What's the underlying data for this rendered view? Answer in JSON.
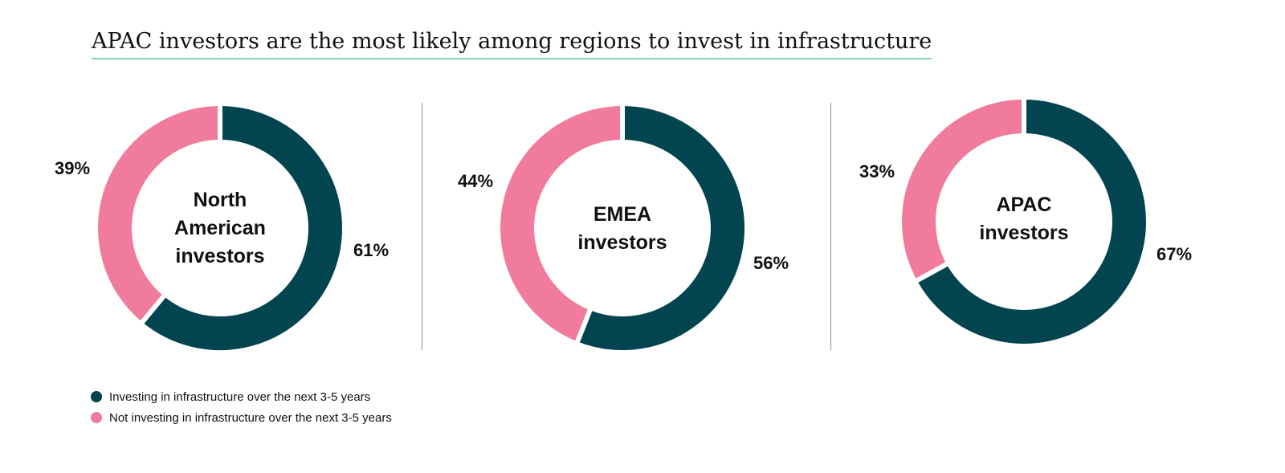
{
  "title": "APAC investors are the most likely among regions to invest in infrastructure",
  "colors": {
    "investing": "#02444f",
    "not_investing": "#f07b9c",
    "title_underline": "#7fd3b4",
    "divider": "#7a97a4"
  },
  "legend": {
    "items": [
      {
        "label": "Investing in infrastructure over the next 3-5 years",
        "color": "#02444f"
      },
      {
        "label": "Not investing in infrastructure over the next 3-5 years",
        "color": "#f07b9c"
      }
    ]
  },
  "chart_data": [
    {
      "type": "pie",
      "variant": "donut",
      "center_label": "North American investors",
      "series": [
        {
          "name": "Investing in infrastructure over the next 3-5 years",
          "value": 61,
          "label": "61%"
        },
        {
          "name": "Not investing in infrastructure over the next 3-5 years",
          "value": 39,
          "label": "39%"
        }
      ]
    },
    {
      "type": "pie",
      "variant": "donut",
      "center_label": "EMEA investors",
      "series": [
        {
          "name": "Investing in infrastructure over the next 3-5 years",
          "value": 56,
          "label": "56%"
        },
        {
          "name": "Not investing in infrastructure over the next 3-5 years",
          "value": 44,
          "label": "44%"
        }
      ]
    },
    {
      "type": "pie",
      "variant": "donut",
      "center_label": "APAC investors",
      "series": [
        {
          "name": "Investing in infrastructure over the next 3-5 years",
          "value": 67,
          "label": "67%"
        },
        {
          "name": "Not investing in infrastructure over the next 3-5 years",
          "value": 33,
          "label": "33%"
        }
      ]
    }
  ]
}
